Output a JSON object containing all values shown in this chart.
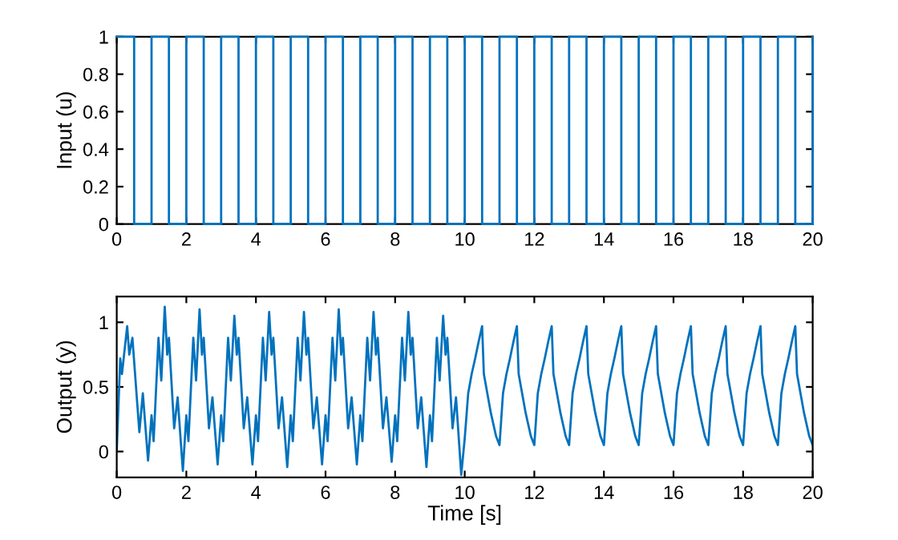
{
  "chart_data": [
    {
      "type": "step",
      "ylabel": "Input (u)",
      "color": "#0072bd",
      "x": [
        0,
        0.5,
        1,
        1.5,
        2,
        2.5,
        3,
        3.5,
        4,
        4.5,
        5,
        5.5,
        6,
        6.5,
        7,
        7.5,
        8,
        8.5,
        9,
        9.5,
        10,
        10.5,
        11,
        11.5,
        12,
        12.5,
        13,
        13.5,
        14,
        14.5,
        15,
        15.5,
        16,
        16.5,
        17,
        17.5,
        18,
        18.5,
        19,
        19.5,
        20
      ],
      "values": [
        1,
        0,
        1,
        0,
        1,
        0,
        1,
        0,
        1,
        0,
        1,
        0,
        1,
        0,
        1,
        0,
        1,
        0,
        1,
        0,
        1,
        0,
        1,
        0,
        1,
        0,
        1,
        0,
        1,
        0,
        1,
        0,
        1,
        0,
        1,
        0,
        1,
        0,
        1,
        0,
        1
      ],
      "xlim": [
        0,
        20
      ],
      "xticks": [
        0,
        2,
        4,
        6,
        8,
        10,
        12,
        14,
        16,
        18,
        20
      ],
      "ylim": [
        0,
        1
      ],
      "yticks": [
        0,
        0.2,
        0.4,
        0.6,
        0.8,
        1
      ],
      "grid": false,
      "legend": false
    },
    {
      "type": "line",
      "xlabel": "Time [s]",
      "ylabel": "Output (y)",
      "color": "#0072bd",
      "x": [
        0,
        0.1,
        0.15,
        0.3,
        0.36,
        0.45,
        0.65,
        0.75,
        0.9,
        1,
        1.06,
        1.2,
        1.28,
        1.38,
        1.45,
        1.5,
        1.65,
        1.75,
        1.9,
        2,
        2.06,
        2.2,
        2.28,
        2.38,
        2.45,
        2.5,
        2.65,
        2.75,
        2.9,
        3,
        3.06,
        3.2,
        3.28,
        3.38,
        3.45,
        3.5,
        3.65,
        3.75,
        3.9,
        4,
        4.06,
        4.2,
        4.28,
        4.38,
        4.45,
        4.5,
        4.65,
        4.75,
        4.9,
        5,
        5.06,
        5.2,
        5.28,
        5.38,
        5.45,
        5.5,
        5.65,
        5.75,
        5.9,
        6,
        6.06,
        6.2,
        6.28,
        6.38,
        6.45,
        6.5,
        6.65,
        6.75,
        6.9,
        7,
        7.06,
        7.2,
        7.28,
        7.38,
        7.45,
        7.5,
        7.65,
        7.75,
        7.9,
        8,
        8.06,
        8.2,
        8.28,
        8.38,
        8.45,
        8.5,
        8.65,
        8.75,
        8.9,
        9,
        9.06,
        9.2,
        9.28,
        9.38,
        9.45,
        9.5,
        9.65,
        9.75,
        9.9,
        10,
        10.1,
        10.2,
        10.3,
        10.4,
        10.5,
        10.55,
        10.65,
        10.75,
        10.9,
        11,
        11.1,
        11.2,
        11.3,
        11.4,
        11.5,
        11.55,
        11.65,
        11.75,
        11.9,
        12,
        12.1,
        12.2,
        12.3,
        12.4,
        12.5,
        12.55,
        12.65,
        12.75,
        12.9,
        13,
        13.1,
        13.2,
        13.3,
        13.4,
        13.5,
        13.55,
        13.65,
        13.75,
        13.9,
        14,
        14.1,
        14.2,
        14.3,
        14.4,
        14.5,
        14.55,
        14.65,
        14.75,
        14.9,
        15,
        15.1,
        15.2,
        15.3,
        15.4,
        15.5,
        15.55,
        15.65,
        15.75,
        15.9,
        16,
        16.1,
        16.2,
        16.3,
        16.4,
        16.5,
        16.55,
        16.65,
        16.75,
        16.9,
        17,
        17.1,
        17.2,
        17.3,
        17.4,
        17.5,
        17.55,
        17.65,
        17.75,
        17.9,
        18,
        18.1,
        18.2,
        18.3,
        18.4,
        18.5,
        18.55,
        18.65,
        18.75,
        18.9,
        19,
        19.1,
        19.2,
        19.3,
        19.4,
        19.5,
        19.55,
        19.65,
        19.75,
        19.9,
        20
      ],
      "values": [
        0,
        0.72,
        0.6,
        0.97,
        0.75,
        0.88,
        0.15,
        0.45,
        -0.07,
        0.28,
        0.08,
        0.88,
        0.55,
        1.12,
        0.75,
        0.88,
        0.18,
        0.42,
        -0.15,
        0.28,
        0.08,
        0.88,
        0.55,
        1.1,
        0.75,
        0.88,
        0.18,
        0.42,
        -0.1,
        0.28,
        0.08,
        0.88,
        0.55,
        1.05,
        0.75,
        0.88,
        0.18,
        0.42,
        -0.1,
        0.28,
        0.08,
        0.88,
        0.55,
        1.08,
        0.75,
        0.88,
        0.18,
        0.42,
        -0.12,
        0.28,
        0.08,
        0.88,
        0.55,
        1.08,
        0.75,
        0.88,
        0.18,
        0.42,
        -0.1,
        0.28,
        0.08,
        0.88,
        0.55,
        1.1,
        0.75,
        0.88,
        0.18,
        0.42,
        -0.1,
        0.28,
        0.08,
        0.88,
        0.55,
        1.08,
        0.75,
        0.88,
        0.18,
        0.42,
        -0.08,
        0.28,
        0.08,
        0.88,
        0.55,
        1.08,
        0.75,
        0.88,
        0.18,
        0.42,
        -0.12,
        0.28,
        0.08,
        0.88,
        0.55,
        1.05,
        0.75,
        0.88,
        0.18,
        0.42,
        -0.18,
        0.1,
        0.45,
        0.6,
        0.72,
        0.85,
        0.97,
        0.6,
        0.45,
        0.3,
        0.12,
        0.05,
        0.45,
        0.6,
        0.72,
        0.85,
        0.97,
        0.6,
        0.45,
        0.3,
        0.12,
        0.05,
        0.45,
        0.6,
        0.72,
        0.85,
        0.97,
        0.6,
        0.45,
        0.3,
        0.12,
        0.05,
        0.45,
        0.6,
        0.72,
        0.85,
        0.97,
        0.6,
        0.45,
        0.3,
        0.12,
        0.05,
        0.45,
        0.6,
        0.72,
        0.85,
        0.97,
        0.6,
        0.45,
        0.3,
        0.12,
        0.05,
        0.45,
        0.6,
        0.72,
        0.85,
        0.97,
        0.6,
        0.45,
        0.3,
        0.12,
        0.05,
        0.45,
        0.6,
        0.72,
        0.85,
        0.97,
        0.6,
        0.45,
        0.3,
        0.12,
        0.05,
        0.45,
        0.6,
        0.72,
        0.85,
        0.97,
        0.6,
        0.45,
        0.3,
        0.12,
        0.05,
        0.45,
        0.6,
        0.72,
        0.85,
        0.97,
        0.6,
        0.45,
        0.3,
        0.12,
        0.05,
        0.45,
        0.6,
        0.72,
        0.85,
        0.97,
        0.6,
        0.45,
        0.3,
        0.12,
        0.05
      ],
      "xlim": [
        0,
        20
      ],
      "xticks": [
        0,
        2,
        4,
        6,
        8,
        10,
        12,
        14,
        16,
        18,
        20
      ],
      "ylim": [
        -0.2,
        1.2
      ],
      "yticks": [
        0,
        0.5,
        1
      ],
      "grid": false,
      "legend": false
    }
  ]
}
